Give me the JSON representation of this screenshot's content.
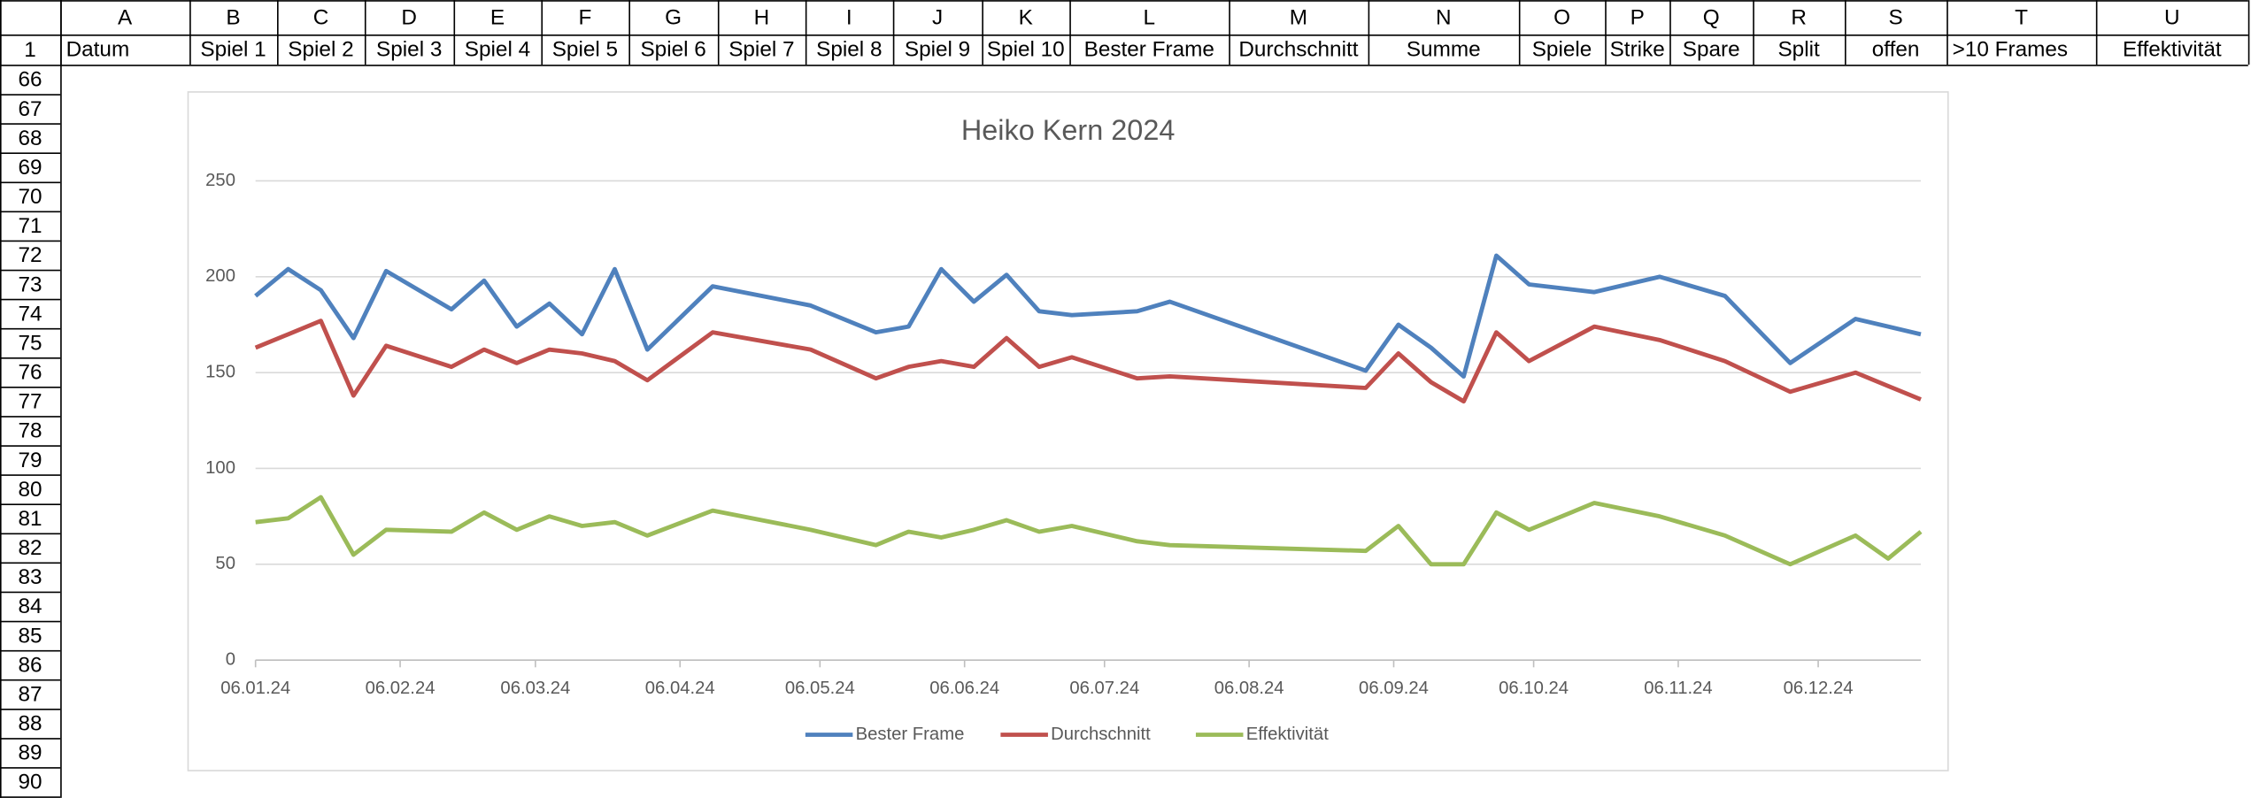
{
  "sheet": {
    "columns": [
      "A",
      "B",
      "C",
      "D",
      "E",
      "F",
      "G",
      "H",
      "I",
      "J",
      "K",
      "L",
      "M",
      "N",
      "O",
      "P",
      "Q",
      "R",
      "S",
      "T",
      "U"
    ],
    "rows": [
      "1",
      "66",
      "67",
      "68",
      "69",
      "70",
      "71",
      "72",
      "73",
      "74",
      "75",
      "76",
      "77",
      "78",
      "79",
      "80",
      "81",
      "82",
      "83",
      "84",
      "85",
      "86",
      "87",
      "88",
      "89",
      "90"
    ],
    "header": [
      "Datum",
      "Spiel 1",
      "Spiel 2",
      "Spiel 3",
      "Spiel 4",
      "Spiel 5",
      "Spiel 6",
      "Spiel 7",
      "Spiel 8",
      "Spiel 9",
      "Spiel 10",
      "Bester Frame",
      "Durchschnitt",
      "Summe",
      "Spiele",
      "Strike",
      "Spare",
      "Split",
      "offen",
      ">10 Frames",
      "Effektivität"
    ]
  },
  "chart_data": {
    "type": "line",
    "title": "Heiko Kern 2024",
    "x": [
      "2024-01-06",
      "2024-01-13",
      "2024-01-20",
      "2024-01-27",
      "2024-02-03",
      "2024-02-17",
      "2024-02-24",
      "2024-03-02",
      "2024-03-09",
      "2024-03-16",
      "2024-03-23",
      "2024-03-30",
      "2024-04-13",
      "2024-05-04",
      "2024-05-18",
      "2024-05-25",
      "2024-06-01",
      "2024-06-08",
      "2024-06-15",
      "2024-06-22",
      "2024-06-29",
      "2024-07-13",
      "2024-07-20",
      "2024-08-31",
      "2024-09-07",
      "2024-09-14",
      "2024-09-21",
      "2024-09-28",
      "2024-10-05",
      "2024-10-19",
      "2024-11-02",
      "2024-11-16",
      "2024-11-30",
      "2024-12-14",
      "2024-12-21",
      "2024-12-28"
    ],
    "series": [
      {
        "name": "Bester Frame",
        "color": "#4f81bd",
        "values": [
          190,
          204,
          193,
          168,
          203,
          183,
          198,
          174,
          186,
          170,
          204,
          162,
          195,
          185,
          171,
          174,
          204,
          187,
          201,
          182,
          180,
          182,
          187,
          151,
          175,
          163,
          148,
          211,
          196,
          192,
          200,
          190,
          155,
          178,
          174,
          170
        ]
      },
      {
        "name": "Durchschnitt",
        "color": "#c0504d",
        "values": [
          163,
          170,
          177,
          138,
          164,
          153,
          162,
          155,
          162,
          160,
          156,
          146,
          171,
          162,
          147,
          153,
          156,
          153,
          168,
          153,
          158,
          147,
          148,
          142,
          160,
          145,
          135,
          171,
          156,
          174,
          167,
          156,
          140,
          150,
          143,
          136
        ]
      },
      {
        "name": "Effektivität",
        "color": "#9bbb59",
        "values": [
          72,
          74,
          85,
          55,
          68,
          67,
          77,
          68,
          75,
          70,
          72,
          65,
          78,
          68,
          60,
          67,
          64,
          68,
          73,
          67,
          70,
          62,
          60,
          57,
          70,
          50,
          50,
          77,
          68,
          82,
          75,
          65,
          50,
          65,
          53,
          67
        ]
      }
    ],
    "xlim": [
      "2024-01-06",
      "2024-12-28"
    ],
    "xticks": [
      {
        "value": "2024-01-06",
        "label": "06.01.24"
      },
      {
        "value": "2024-02-06",
        "label": "06.02.24"
      },
      {
        "value": "2024-03-06",
        "label": "06.03.24"
      },
      {
        "value": "2024-04-06",
        "label": "06.04.24"
      },
      {
        "value": "2024-05-06",
        "label": "06.05.24"
      },
      {
        "value": "2024-06-06",
        "label": "06.06.24"
      },
      {
        "value": "2024-07-06",
        "label": "06.07.24"
      },
      {
        "value": "2024-08-06",
        "label": "06.08.24"
      },
      {
        "value": "2024-09-06",
        "label": "06.09.24"
      },
      {
        "value": "2024-10-06",
        "label": "06.10.24"
      },
      {
        "value": "2024-11-06",
        "label": "06.11.24"
      },
      {
        "value": "2024-12-06",
        "label": "06.12.24"
      }
    ],
    "ylim": [
      0,
      250
    ],
    "yticks": [
      0,
      50,
      100,
      150,
      200,
      250
    ],
    "grid": true,
    "legend": "bottom"
  }
}
